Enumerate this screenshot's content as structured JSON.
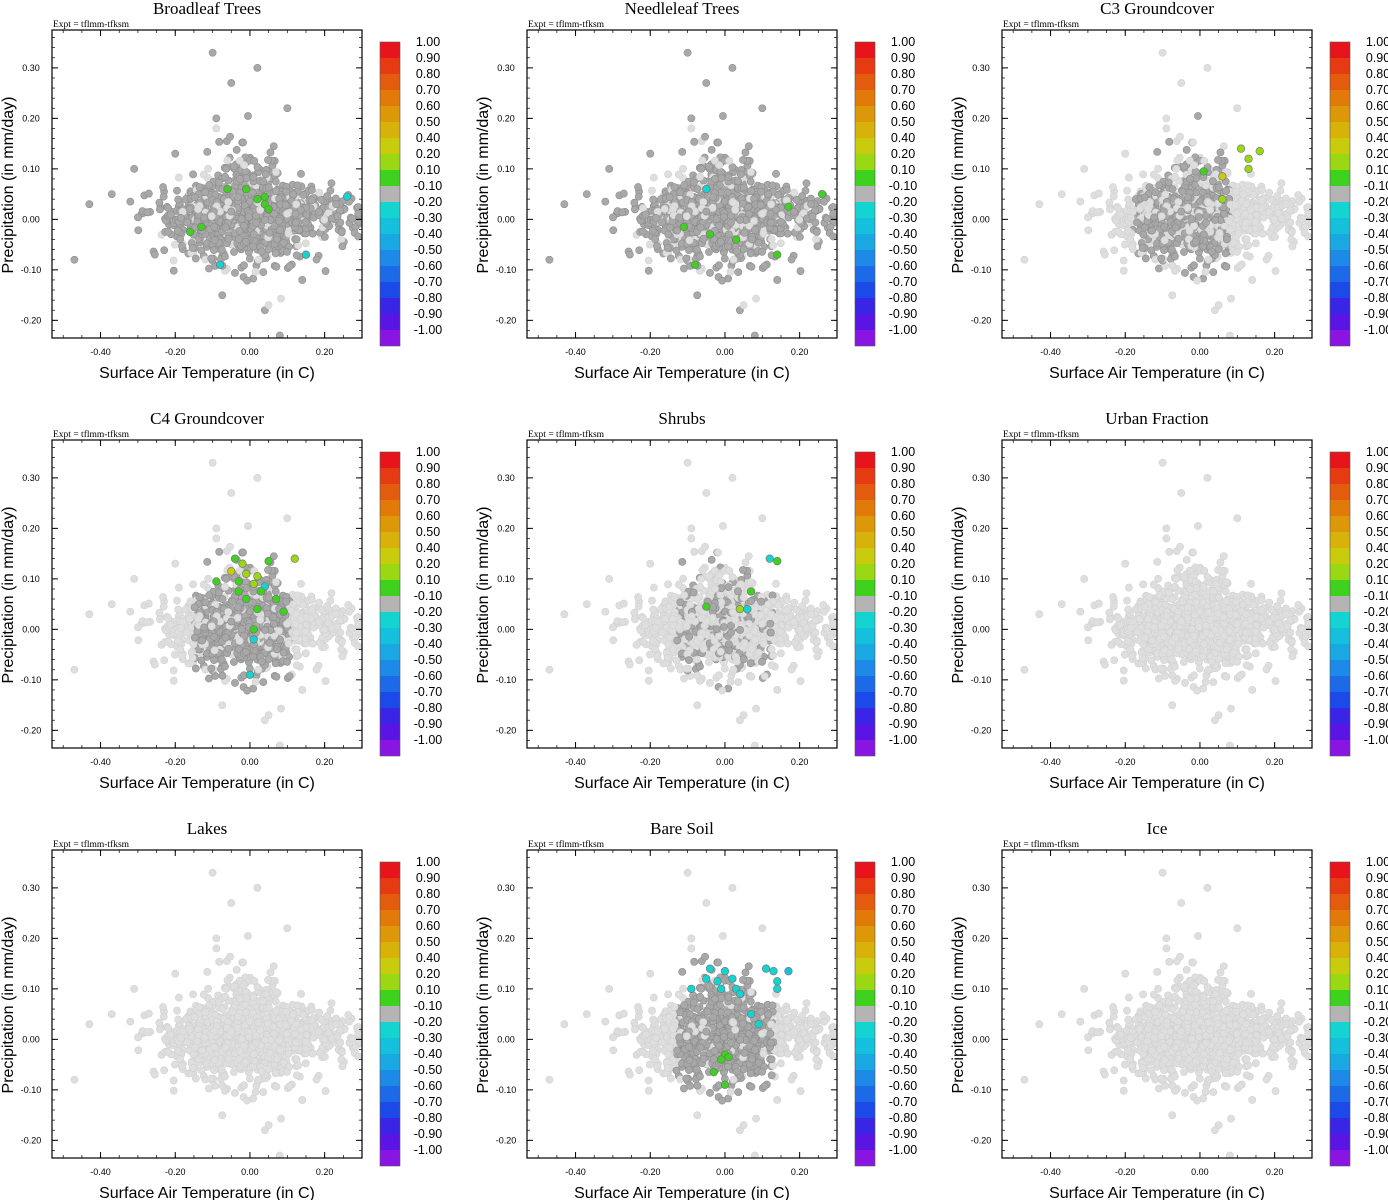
{
  "figure": {
    "experiment_label": "Expt = tflmm-tfksm"
  },
  "colorbar": {
    "labels": [
      "1.00",
      "0.90",
      "0.80",
      "0.70",
      "0.60",
      "0.50",
      "0.40",
      "0.20",
      "0.10",
      "-0.10",
      "-0.20",
      "-0.30",
      "-0.40",
      "-0.50",
      "-0.60",
      "-0.70",
      "-0.80",
      "-0.90",
      "-1.00"
    ],
    "colors": [
      "#e8141c",
      "#e63b12",
      "#e35b0c",
      "#e27a0a",
      "#dc9808",
      "#d8b10a",
      "#c9cc0c",
      "#9bd814",
      "#3ed21e",
      "#b4b4b4",
      "#14d4d2",
      "#14c0dc",
      "#1aa8e2",
      "#1c8ae6",
      "#1c6ae8",
      "#1c4ae8",
      "#3a24e6",
      "#5a14e4",
      "#8a14e2"
    ]
  },
  "chart_data": [
    {
      "type": "scatter",
      "title": "Broadleaf Trees",
      "xlabel": "Surface Air Temperature (in C)",
      "ylabel": "Precipitation (in mm/day)",
      "xlim": [
        -0.53,
        0.3
      ],
      "ylim": [
        -0.235,
        0.375
      ],
      "xticks": [
        -0.4,
        -0.2,
        0.0,
        0.2
      ],
      "xticklabels": [
        "-0.40",
        "-0.20",
        "0.00",
        "0.20"
      ],
      "yticks": [
        -0.2,
        -0.1,
        0.0,
        0.1,
        0.2,
        0.3
      ],
      "yticklabels": [
        "-0.20",
        "-0.10",
        "0.00",
        "0.10",
        "0.20",
        "0.30"
      ],
      "colored_points": [
        {
          "x": -0.06,
          "y": 0.06,
          "c": 0.15
        },
        {
          "x": -0.01,
          "y": 0.06,
          "c": 0.15
        },
        {
          "x": 0.04,
          "y": 0.045,
          "c": 0.15
        },
        {
          "x": 0.04,
          "y": 0.03,
          "c": 0.15
        },
        {
          "x": 0.05,
          "y": 0.02,
          "c": 0.15
        },
        {
          "x": 0.02,
          "y": 0.04,
          "c": 0.15
        },
        {
          "x": -0.16,
          "y": -0.025,
          "c": 0.15
        },
        {
          "x": -0.13,
          "y": -0.015,
          "c": 0.15
        },
        {
          "x": -0.08,
          "y": -0.09,
          "c": -0.2
        },
        {
          "x": 0.15,
          "y": -0.07,
          "c": -0.25
        },
        {
          "x": 0.26,
          "y": 0.045,
          "c": -0.2
        }
      ],
      "gray_fraction": 0.85
    },
    {
      "type": "scatter",
      "title": "Needleleaf Trees",
      "xlabel": "Surface Air Temperature (in C)",
      "ylabel": "Precipitation (in mm/day)",
      "xlim": [
        -0.53,
        0.3
      ],
      "ylim": [
        -0.235,
        0.375
      ],
      "xticks": [
        -0.4,
        -0.2,
        0.0,
        0.2
      ],
      "xticklabels": [
        "-0.40",
        "-0.20",
        "0.00",
        "0.20"
      ],
      "yticks": [
        -0.2,
        -0.1,
        0.0,
        0.1,
        0.2,
        0.3
      ],
      "yticklabels": [
        "-0.20",
        "-0.10",
        "0.00",
        "0.10",
        "0.20",
        "0.30"
      ],
      "colored_points": [
        {
          "x": -0.11,
          "y": -0.015,
          "c": 0.15
        },
        {
          "x": -0.04,
          "y": -0.03,
          "c": 0.15
        },
        {
          "x": 0.03,
          "y": -0.04,
          "c": 0.15
        },
        {
          "x": 0.17,
          "y": 0.025,
          "c": 0.15
        },
        {
          "x": 0.26,
          "y": 0.05,
          "c": 0.15
        },
        {
          "x": 0.14,
          "y": -0.07,
          "c": 0.15
        },
        {
          "x": -0.08,
          "y": -0.09,
          "c": 0.15
        },
        {
          "x": -0.05,
          "y": 0.06,
          "c": -0.2
        }
      ],
      "gray_fraction": 0.78
    },
    {
      "type": "scatter",
      "title": "C3 Groundcover",
      "xlabel": "Surface Air Temperature (in C)",
      "ylabel": "Precipitation (in mm/day)",
      "xlim": [
        -0.53,
        0.3
      ],
      "ylim": [
        -0.235,
        0.375
      ],
      "xticks": [
        -0.4,
        -0.2,
        0.0,
        0.2
      ],
      "xticklabels": [
        "-0.40",
        "-0.20",
        "0.00",
        "0.20"
      ],
      "yticks": [
        -0.2,
        -0.1,
        0.0,
        0.1,
        0.2,
        0.3
      ],
      "yticklabels": [
        "-0.20",
        "-0.10",
        "0.00",
        "0.10",
        "0.20",
        "0.30"
      ],
      "colored_points": [
        {
          "x": 0.11,
          "y": 0.14,
          "c": 0.3
        },
        {
          "x": 0.16,
          "y": 0.135,
          "c": 0.3
        },
        {
          "x": 0.13,
          "y": 0.12,
          "c": 0.25
        },
        {
          "x": 0.13,
          "y": 0.1,
          "c": 0.3
        },
        {
          "x": 0.06,
          "y": 0.085,
          "c": 0.4
        },
        {
          "x": 0.01,
          "y": 0.095,
          "c": 0.15
        },
        {
          "x": 0.06,
          "y": 0.04,
          "c": 0.3
        }
      ],
      "gray_fraction": 0.18,
      "gray_focus": [
        -0.05,
        0.05
      ]
    },
    {
      "type": "scatter",
      "title": "C4 Groundcover",
      "xlabel": "Surface Air Temperature (in C)",
      "ylabel": "Precipitation (in mm/day)",
      "xlim": [
        -0.53,
        0.3
      ],
      "ylim": [
        -0.235,
        0.375
      ],
      "xticks": [
        -0.4,
        -0.2,
        0.0,
        0.2
      ],
      "xticklabels": [
        "-0.40",
        "-0.20",
        "0.00",
        "0.20"
      ],
      "yticks": [
        -0.2,
        -0.1,
        0.0,
        0.1,
        0.2,
        0.3
      ],
      "yticklabels": [
        "-0.20",
        "-0.10",
        "0.00",
        "0.10",
        "0.20",
        "0.30"
      ],
      "colored_points": [
        {
          "x": -0.04,
          "y": 0.14,
          "c": 0.15
        },
        {
          "x": -0.02,
          "y": 0.13,
          "c": 0.3
        },
        {
          "x": 0.05,
          "y": 0.135,
          "c": 0.15
        },
        {
          "x": 0.12,
          "y": 0.14,
          "c": 0.3
        },
        {
          "x": -0.05,
          "y": 0.115,
          "c": 0.4
        },
        {
          "x": -0.01,
          "y": 0.11,
          "c": 0.3
        },
        {
          "x": 0.02,
          "y": 0.105,
          "c": 0.3
        },
        {
          "x": -0.09,
          "y": 0.095,
          "c": 0.15
        },
        {
          "x": -0.03,
          "y": 0.095,
          "c": 0.15
        },
        {
          "x": 0.01,
          "y": 0.09,
          "c": 0.3
        },
        {
          "x": 0.04,
          "y": 0.085,
          "c": -0.2
        },
        {
          "x": -0.03,
          "y": 0.075,
          "c": 0.15
        },
        {
          "x": 0.03,
          "y": 0.075,
          "c": 0.15
        },
        {
          "x": -0.01,
          "y": 0.06,
          "c": 0.15
        },
        {
          "x": 0.07,
          "y": 0.06,
          "c": 0.15
        },
        {
          "x": 0.09,
          "y": 0.035,
          "c": 0.15
        },
        {
          "x": 0.02,
          "y": 0.04,
          "c": 0.15
        },
        {
          "x": 0.01,
          "y": 0.0,
          "c": 0.15
        },
        {
          "x": 0.0,
          "y": -0.09,
          "c": -0.2
        },
        {
          "x": 0.01,
          "y": -0.02,
          "c": -0.2
        }
      ],
      "gray_fraction": 0.22,
      "gray_focus": [
        -0.02,
        0.03
      ]
    },
    {
      "type": "scatter",
      "title": "Shrubs",
      "xlabel": "Surface Air Temperature (in C)",
      "ylabel": "Precipitation (in mm/day)",
      "xlim": [
        -0.53,
        0.3
      ],
      "ylim": [
        -0.235,
        0.375
      ],
      "xticks": [
        -0.4,
        -0.2,
        0.0,
        0.2
      ],
      "xticklabels": [
        "-0.40",
        "-0.20",
        "0.00",
        "0.20"
      ],
      "yticks": [
        -0.2,
        -0.1,
        0.0,
        0.1,
        0.2,
        0.3
      ],
      "yticklabels": [
        "-0.20",
        "-0.10",
        "0.00",
        "0.10",
        "0.20",
        "0.30"
      ],
      "colored_points": [
        {
          "x": 0.12,
          "y": 0.14,
          "c": -0.2
        },
        {
          "x": 0.14,
          "y": 0.135,
          "c": 0.15
        },
        {
          "x": 0.07,
          "y": 0.075,
          "c": 0.15
        },
        {
          "x": -0.05,
          "y": 0.045,
          "c": 0.15
        },
        {
          "x": 0.04,
          "y": 0.04,
          "c": 0.3
        },
        {
          "x": 0.06,
          "y": 0.04,
          "c": -0.2
        }
      ],
      "gray_fraction": 0.09,
      "gray_focus": [
        0.0,
        0.03
      ]
    },
    {
      "type": "scatter",
      "title": "Urban Fraction",
      "xlabel": "Surface Air Temperature (in C)",
      "ylabel": "Precipitation (in mm/day)",
      "xlim": [
        -0.53,
        0.3
      ],
      "ylim": [
        -0.235,
        0.375
      ],
      "xticks": [
        -0.4,
        -0.2,
        0.0,
        0.2
      ],
      "xticklabels": [
        "-0.40",
        "-0.20",
        "0.00",
        "0.20"
      ],
      "yticks": [
        -0.2,
        -0.1,
        0.0,
        0.1,
        0.2,
        0.3
      ],
      "yticklabels": [
        "-0.20",
        "-0.10",
        "0.00",
        "0.10",
        "0.20",
        "0.30"
      ],
      "colored_points": [],
      "gray_fraction": 0.0
    },
    {
      "type": "scatter",
      "title": "Lakes",
      "xlabel": "Surface Air Temperature (in C)",
      "ylabel": "Precipitation (in mm/day)",
      "xlim": [
        -0.53,
        0.3
      ],
      "ylim": [
        -0.235,
        0.375
      ],
      "xticks": [
        -0.4,
        -0.2,
        0.0,
        0.2
      ],
      "xticklabels": [
        "-0.40",
        "-0.20",
        "0.00",
        "0.20"
      ],
      "yticks": [
        -0.2,
        -0.1,
        0.0,
        0.1,
        0.2,
        0.3
      ],
      "yticklabels": [
        "-0.20",
        "-0.10",
        "0.00",
        "0.10",
        "0.20",
        "0.30"
      ],
      "colored_points": [],
      "gray_fraction": 0.0
    },
    {
      "type": "scatter",
      "title": "Bare Soil",
      "xlabel": "Surface Air Temperature (in C)",
      "ylabel": "Precipitation (in mm/day)",
      "xlim": [
        -0.53,
        0.3
      ],
      "ylim": [
        -0.235,
        0.375
      ],
      "xticks": [
        -0.4,
        -0.2,
        0.0,
        0.2
      ],
      "xticklabels": [
        "-0.40",
        "-0.20",
        "0.00",
        "0.20"
      ],
      "yticks": [
        -0.2,
        -0.1,
        0.0,
        0.1,
        0.2,
        0.3
      ],
      "yticklabels": [
        "-0.20",
        "-0.10",
        "0.00",
        "0.10",
        "0.20",
        "0.30"
      ],
      "colored_points": [
        {
          "x": -0.04,
          "y": 0.14,
          "c": -0.2
        },
        {
          "x": 0.11,
          "y": 0.14,
          "c": -0.2
        },
        {
          "x": 0.13,
          "y": 0.135,
          "c": -0.2
        },
        {
          "x": 0.17,
          "y": 0.135,
          "c": -0.3
        },
        {
          "x": 0.0,
          "y": 0.135,
          "c": -0.2
        },
        {
          "x": -0.05,
          "y": 0.12,
          "c": -0.2
        },
        {
          "x": -0.02,
          "y": 0.115,
          "c": -0.2
        },
        {
          "x": 0.02,
          "y": 0.12,
          "c": -0.2
        },
        {
          "x": 0.14,
          "y": 0.115,
          "c": -0.2
        },
        {
          "x": -0.09,
          "y": 0.1,
          "c": -0.2
        },
        {
          "x": -0.01,
          "y": 0.1,
          "c": -0.2
        },
        {
          "x": 0.03,
          "y": 0.1,
          "c": -0.2
        },
        {
          "x": 0.14,
          "y": 0.1,
          "c": -0.2
        },
        {
          "x": 0.04,
          "y": 0.09,
          "c": -0.2
        },
        {
          "x": 0.07,
          "y": 0.05,
          "c": -0.2
        },
        {
          "x": 0.09,
          "y": 0.03,
          "c": -0.2
        },
        {
          "x": 0.0,
          "y": -0.03,
          "c": 0.15
        },
        {
          "x": 0.01,
          "y": -0.035,
          "c": 0.15
        },
        {
          "x": -0.01,
          "y": -0.04,
          "c": 0.15
        },
        {
          "x": -0.03,
          "y": -0.065,
          "c": 0.15
        },
        {
          "x": 0.0,
          "y": -0.09,
          "c": 0.15
        }
      ],
      "gray_fraction": 0.25,
      "gray_focus": [
        0.0,
        0.03
      ]
    },
    {
      "type": "scatter",
      "title": "Ice",
      "xlabel": "Surface Air Temperature (in C)",
      "ylabel": "Precipitation (in mm/day)",
      "xlim": [
        -0.53,
        0.3
      ],
      "ylim": [
        -0.235,
        0.375
      ],
      "xticks": [
        -0.4,
        -0.2,
        0.0,
        0.2
      ],
      "xticklabels": [
        "-0.40",
        "-0.20",
        "0.00",
        "0.20"
      ],
      "yticks": [
        -0.2,
        -0.1,
        0.0,
        0.1,
        0.2,
        0.3
      ],
      "yticklabels": [
        "-0.20",
        "-0.10",
        "0.00",
        "0.10",
        "0.20",
        "0.30"
      ],
      "colored_points": [],
      "gray_fraction": 0.0
    }
  ]
}
